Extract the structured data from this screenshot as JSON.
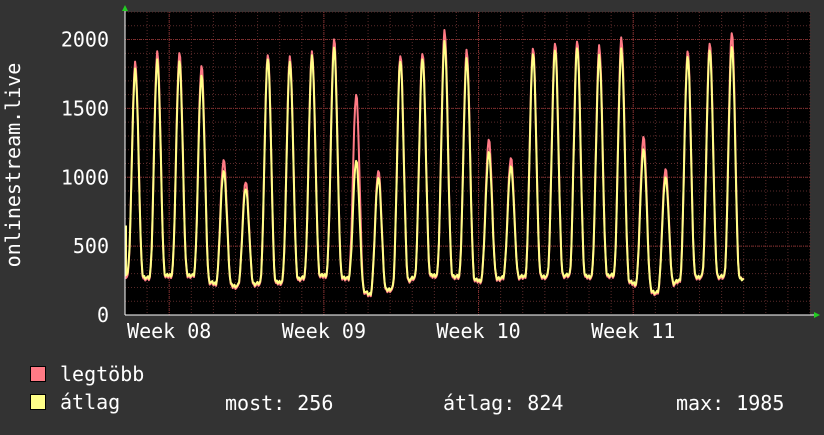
{
  "chart_data": {
    "type": "line",
    "ylabel": "onlinestream.live",
    "ylim": [
      0,
      2200
    ],
    "yticks": [
      0,
      500,
      1000,
      1500,
      2000
    ],
    "xlim": [
      0,
      31
    ],
    "xticks": [
      {
        "label": "Week 08",
        "at": 2
      },
      {
        "label": "Week 09",
        "at": 9
      },
      {
        "label": "Week 10",
        "at": 16
      },
      {
        "label": "Week 11",
        "at": 23
      }
    ],
    "grid": true,
    "series": [
      {
        "name": "legtöbb",
        "color": "#ff7a85",
        "daily_peaks": [
          1830,
          1910,
          1900,
          1810,
          1130,
          970,
          1900,
          1870,
          1910,
          2000,
          1600,
          1050,
          1890,
          1910,
          2060,
          1920,
          1270,
          1140,
          1940,
          1980,
          2000,
          1950,
          2010,
          1290,
          1060,
          1920,
          1980,
          2060
        ],
        "daily_troughs": [
          280,
          260,
          280,
          280,
          220,
          200,
          220,
          230,
          260,
          280,
          260,
          140,
          180,
          260,
          280,
          270,
          240,
          260,
          270,
          270,
          280,
          270,
          280,
          220,
          150,
          240,
          270,
          270,
          260
        ]
      },
      {
        "name": "átlag",
        "color": "#ffff88",
        "daily_peaks": [
          1780,
          1850,
          1840,
          1740,
          1050,
          920,
          1870,
          1830,
          1880,
          1940,
          1120,
          1000,
          1850,
          1870,
          1980,
          1860,
          1180,
          1080,
          1900,
          1930,
          1950,
          1880,
          1930,
          1200,
          1000,
          1880,
          1930,
          1960
        ],
        "daily_troughs": [
          300,
          270,
          290,
          290,
          230,
          210,
          230,
          240,
          270,
          290,
          270,
          150,
          190,
          270,
          290,
          280,
          250,
          270,
          280,
          280,
          290,
          280,
          290,
          230,
          160,
          250,
          280,
          280,
          256
        ]
      }
    ]
  },
  "legend": [
    {
      "label": "legtöbb",
      "color": "#ff7a85"
    },
    {
      "label": "átlag",
      "color": "#ffff88"
    }
  ],
  "stats": {
    "current": "most: 256",
    "average": "átlag: 824",
    "max": "max: 1985"
  }
}
